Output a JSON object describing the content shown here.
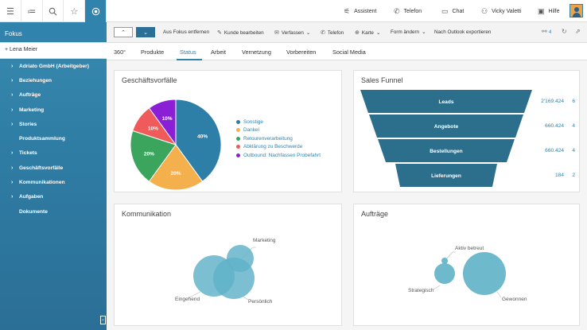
{
  "sidebar": {
    "title": "Fokus",
    "person": "Lena Meier",
    "person_prefix": "+",
    "items": [
      {
        "label": "Adriato GmbH (Arbeitgeber)",
        "chev": "›"
      },
      {
        "label": "Beziehungen",
        "chev": "›"
      },
      {
        "label": "Aufträge",
        "chev": "›"
      },
      {
        "label": "Marketing",
        "chev": "›"
      },
      {
        "label": "Stories",
        "chev": "›"
      },
      {
        "label": "Produktsammlung",
        "chev": ""
      },
      {
        "label": "Tickets",
        "chev": "›"
      },
      {
        "label": "Geschäftsvorfälle",
        "chev": "›"
      },
      {
        "label": "Kommunikationen",
        "chev": "›"
      },
      {
        "label": "Aufgaben",
        "chev": "›"
      },
      {
        "label": "Dokumente",
        "chev": ""
      }
    ],
    "collapse": "‹"
  },
  "topbar": {
    "assistant": "Assistent",
    "phone": "Telefon",
    "chat": "Chat",
    "user": "Vicky Valetti",
    "help": "Hilfe"
  },
  "actionbar": {
    "remove_focus": "Aus Fokus entfernen",
    "edit_customer": "Kunde bearbeiten",
    "compose": "Verfassen",
    "phone": "Telefon",
    "map": "Karte",
    "change_form": "Form ändern",
    "export": "Nach Outlook exportieren",
    "link_count": "4"
  },
  "tabs": [
    "360°",
    "Produkte",
    "Status",
    "Arbeit",
    "Vernetzung",
    "Vorbereiten",
    "Social Media"
  ],
  "active_tab": "Status",
  "panels": {
    "business": "Geschäftsvorfälle",
    "funnel": "Sales Funnel",
    "communication": "Kommunikation",
    "orders": "Aufträge"
  },
  "colors": {
    "accent": "#2f83ad",
    "funnel": "#2b6f8c",
    "bubble": "#5fb1c8"
  },
  "chart_data": [
    {
      "type": "pie",
      "title": "Geschäftsvorfälle",
      "slices": [
        {
          "label": "Sonstige",
          "value": 40,
          "color": "#2e7fa8"
        },
        {
          "label": "Dankel",
          "value": 20,
          "color": "#f5b04e"
        },
        {
          "label": "Retourenverarbeitung",
          "value": 20,
          "color": "#3ba55d"
        },
        {
          "label": "Abklärung zu Beschwerde",
          "value": 10,
          "color": "#ef5b5b"
        },
        {
          "label": "Outbound: Nachfassen Probefahrt",
          "value": 10,
          "color": "#8b1fd6"
        }
      ],
      "value_labels": [
        "40%",
        "20%",
        "20%",
        "10%",
        "10%"
      ]
    },
    {
      "type": "funnel",
      "title": "Sales Funnel",
      "stages": [
        {
          "label": "Leads",
          "amount": "2'169.424",
          "count": 6
        },
        {
          "label": "Angebote",
          "amount": "660.424",
          "count": 4
        },
        {
          "label": "Bestellungen",
          "amount": "660.424",
          "count": 4
        },
        {
          "label": "Lieferungen",
          "amount": "184",
          "count": 2
        }
      ]
    },
    {
      "type": "bubble",
      "title": "Kommunikation",
      "bubbles": [
        {
          "label": "Marketing",
          "size": 1
        },
        {
          "label": "Eingehend",
          "size": 2
        },
        {
          "label": "Persönlich",
          "size": 2
        }
      ]
    },
    {
      "type": "bubble",
      "title": "Aufträge",
      "bubbles": [
        {
          "label": "Aktiv betreut",
          "size": 0.1
        },
        {
          "label": "Strategisch",
          "size": 0.8
        },
        {
          "label": "Gewonnen",
          "size": 3
        }
      ]
    }
  ]
}
